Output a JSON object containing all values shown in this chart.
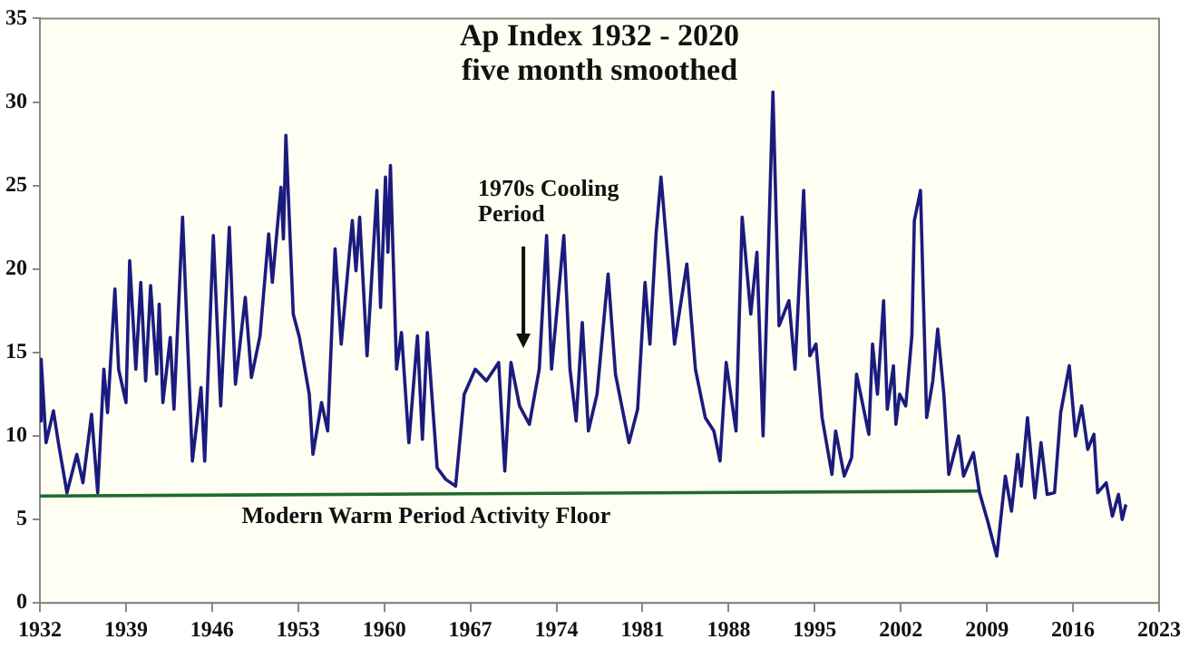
{
  "chart_data": {
    "type": "line",
    "title": "Ap Index 1932 - 2020",
    "subtitle": "five month smoothed",
    "xlim": [
      1932,
      2023
    ],
    "xticks": [
      1932,
      1939,
      1946,
      1953,
      1960,
      1967,
      1974,
      1981,
      1988,
      1995,
      2002,
      2009,
      2016,
      2023
    ],
    "ylim": [
      0,
      35
    ],
    "yticks": [
      0,
      5,
      10,
      15,
      20,
      25,
      30,
      35
    ],
    "grid": false,
    "legend": false,
    "marker": "none",
    "line_style": "solid",
    "series": [
      {
        "color": "#1b1b7e",
        "x": [
          1932.0,
          1932.1,
          1932.5,
          1933.1,
          1933.5,
          1934.2,
          1935.0,
          1935.5,
          1936.2,
          1936.7,
          1937.2,
          1937.5,
          1938.1,
          1938.4,
          1939.0,
          1939.3,
          1939.8,
          1940.2,
          1940.6,
          1941.0,
          1941.5,
          1941.7,
          1942.0,
          1942.6,
          1942.9,
          1943.6,
          1944.4,
          1945.1,
          1945.4,
          1946.1,
          1946.7,
          1947.4,
          1947.9,
          1948.7,
          1949.2,
          1949.9,
          1950.6,
          1950.9,
          1951.6,
          1951.8,
          1952.0,
          1952.6,
          1953.1,
          1953.9,
          1954.2,
          1954.9,
          1955.4,
          1956.0,
          1956.5,
          1957.4,
          1957.7,
          1958.0,
          1958.6,
          1959.4,
          1959.7,
          1960.1,
          1960.3,
          1960.5,
          1961.0,
          1961.4,
          1962.0,
          1962.7,
          1963.1,
          1963.5,
          1964.3,
          1965.0,
          1965.8,
          1966.5,
          1967.4,
          1968.3,
          1969.3,
          1969.8,
          1970.3,
          1971.0,
          1971.8,
          1972.6,
          1973.2,
          1973.6,
          1974.6,
          1975.1,
          1975.6,
          1976.1,
          1976.6,
          1977.3,
          1978.2,
          1978.8,
          1979.9,
          1980.6,
          1981.2,
          1981.6,
          1982.1,
          1982.5,
          1983.1,
          1983.6,
          1984.6,
          1985.3,
          1986.1,
          1986.8,
          1987.3,
          1987.8,
          1988.6,
          1989.1,
          1989.8,
          1990.3,
          1990.8,
          1991.6,
          1992.1,
          1992.9,
          1993.4,
          1994.1,
          1994.6,
          1995.1,
          1995.6,
          1996.4,
          1996.7,
          1997.4,
          1998.0,
          1998.4,
          1999.4,
          1999.7,
          2000.1,
          2000.6,
          2000.9,
          2001.4,
          2001.6,
          2001.9,
          2002.4,
          2002.9,
          2003.1,
          2003.6,
          2004.1,
          2004.6,
          2005.0,
          2005.5,
          2005.9,
          2006.7,
          2007.1,
          2007.9,
          2008.4,
          2009.1,
          2009.8,
          2010.5,
          2011.0,
          2011.5,
          2011.8,
          2012.3,
          2012.9,
          2013.4,
          2013.9,
          2014.5,
          2015.0,
          2015.7,
          2016.2,
          2016.7,
          2017.2,
          2017.7,
          2018.0,
          2018.7,
          2019.2,
          2019.7,
          2020.0,
          2020.3
        ],
        "values": [
          10.9,
          14.6,
          9.6,
          11.5,
          9.6,
          6.6,
          8.9,
          7.2,
          11.3,
          6.6,
          14.0,
          11.4,
          18.8,
          14.0,
          12.0,
          20.5,
          14.0,
          19.2,
          13.3,
          19.0,
          13.7,
          17.9,
          12.0,
          15.9,
          11.6,
          23.1,
          8.5,
          12.9,
          8.5,
          22.0,
          11.8,
          22.5,
          13.1,
          18.3,
          13.5,
          16.0,
          22.1,
          19.2,
          24.9,
          21.8,
          28.0,
          17.3,
          15.9,
          12.5,
          8.9,
          12.0,
          10.3,
          21.2,
          15.5,
          22.9,
          19.9,
          23.1,
          14.8,
          24.7,
          17.7,
          25.5,
          21.0,
          26.2,
          14.0,
          16.2,
          9.6,
          16.0,
          9.8,
          16.2,
          8.1,
          7.4,
          7.0,
          12.5,
          14.0,
          13.3,
          14.4,
          7.9,
          14.4,
          11.8,
          10.7,
          14.0,
          22.0,
          14.0,
          22.0,
          14.0,
          10.9,
          16.8,
          10.3,
          12.5,
          19.7,
          13.7,
          9.6,
          11.6,
          19.2,
          15.5,
          22.1,
          25.5,
          20.3,
          15.5,
          20.3,
          14.0,
          11.1,
          10.3,
          8.5,
          14.4,
          10.3,
          23.1,
          17.3,
          21.0,
          10.0,
          30.6,
          16.6,
          18.1,
          14.0,
          24.7,
          14.8,
          15.5,
          11.1,
          7.7,
          10.3,
          7.6,
          8.7,
          13.7,
          10.1,
          15.5,
          12.5,
          18.1,
          11.6,
          14.2,
          10.7,
          12.5,
          11.8,
          16.0,
          22.9,
          24.7,
          11.1,
          13.3,
          16.4,
          12.5,
          7.7,
          10.0,
          7.6,
          9.0,
          6.6,
          4.8,
          2.8,
          7.6,
          5.5,
          8.9,
          7.0,
          11.1,
          6.3,
          9.6,
          6.5,
          6.6,
          11.4,
          14.2,
          10.0,
          11.8,
          9.2,
          10.1,
          6.6,
          7.2,
          5.2,
          6.5,
          5.0,
          5.9
        ]
      },
      {
        "color": "#1f6b2b",
        "x": [
          1932,
          2008.4
        ],
        "values": [
          6.4,
          6.7
        ]
      }
    ],
    "annotations": [
      "1970s Cooling Period",
      {
        "text": "Modern Warm Period Activity Floor",
        "x": 1963.4,
        "y": 6.5
      }
    ]
  }
}
